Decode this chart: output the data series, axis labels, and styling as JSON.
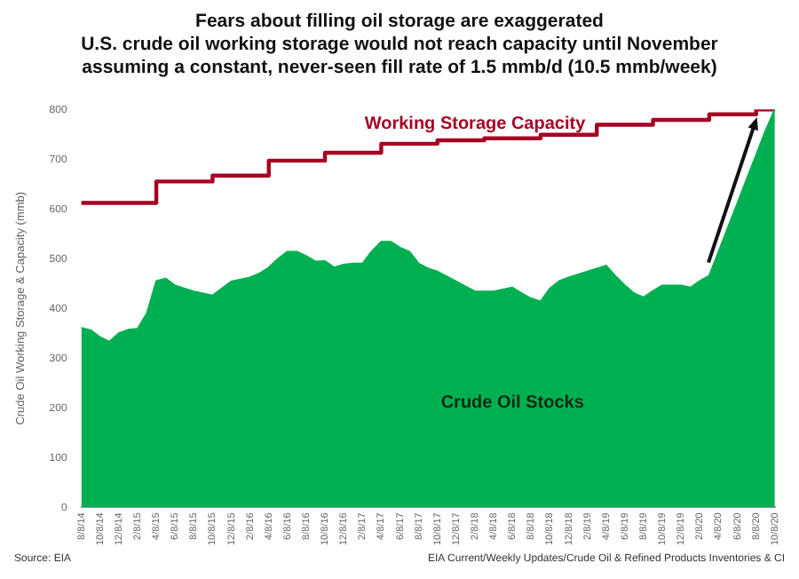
{
  "chart_data": {
    "type": "area",
    "title": "Fears about filling oil storage are exaggerated",
    "subtitle": "U.S. crude oil working storage would not reach capacity until November assuming a constant, never-seen fill rate of 1.5 mmb/d (10.5 mmb/week)",
    "ylabel": "Crude Oil Working Storage & Capacity (mmb)",
    "ylim": [
      0,
      800
    ],
    "yticks": [
      0,
      100,
      200,
      300,
      400,
      500,
      600,
      700,
      800
    ],
    "grid": false,
    "legend": false,
    "marker": "none",
    "categories": [
      "8/8/14",
      null,
      "10/8/14",
      null,
      "12/8/14",
      null,
      "2/8/15",
      null,
      "4/8/15",
      null,
      "6/8/15",
      null,
      "8/8/15",
      null,
      "10/8/15",
      null,
      "12/8/15",
      null,
      "2/8/16",
      null,
      "4/8/16",
      null,
      "6/8/16",
      null,
      "8/8/16",
      null,
      "10/8/16",
      null,
      "12/8/16",
      null,
      "2/8/17",
      null,
      "4/8/17",
      null,
      "6/8/17",
      null,
      "8/8/17",
      null,
      "10/8/17",
      null,
      "12/8/17",
      null,
      "2/8/18",
      null,
      "4/8/18",
      null,
      "6/8/18",
      null,
      "8/8/18",
      null,
      "10/8/18",
      null,
      "12/8/18",
      null,
      "2/8/19",
      null,
      "4/8/19",
      null,
      "6/8/19",
      null,
      "8/8/19",
      null,
      "10/8/19",
      null,
      "12/8/19",
      null,
      "2/8/20",
      null,
      "4/8/20",
      null,
      "6/8/20",
      null,
      "8/8/20",
      null,
      "10/8/20"
    ],
    "series": [
      {
        "name": "Crude Oil Stocks",
        "color": "#00b050",
        "values": [
          361,
          356,
          342,
          333,
          350,
          357,
          359,
          390,
          455,
          460,
          446,
          440,
          434,
          430,
          426,
          440,
          454,
          458,
          462,
          470,
          482,
          500,
          514,
          514,
          505,
          494,
          495,
          482,
          488,
          490,
          490,
          515,
          534,
          534,
          522,
          514,
          490,
          480,
          474,
          464,
          454,
          444,
          434,
          434,
          434,
          438,
          442,
          430,
          420,
          414,
          440,
          455,
          462,
          468,
          474,
          480,
          486,
          465,
          446,
          430,
          422,
          435,
          446,
          446,
          446,
          442,
          455,
          466,
          514,
          563,
          611,
          660,
          708,
          757,
          800
        ]
      },
      {
        "name": "Working Storage Capacity",
        "type": "step",
        "color": "#a50021",
        "values": [
          612,
          612,
          612,
          612,
          612,
          612,
          612,
          612,
          655,
          655,
          655,
          655,
          655,
          655,
          667,
          667,
          667,
          667,
          667,
          667,
          697,
          697,
          697,
          697,
          697,
          697,
          713,
          713,
          713,
          713,
          713,
          713,
          731,
          731,
          731,
          731,
          731,
          731,
          738,
          738,
          738,
          738,
          738,
          742,
          742,
          742,
          742,
          742,
          742,
          749,
          749,
          749,
          749,
          749,
          749,
          769,
          769,
          769,
          769,
          769,
          769,
          779,
          779,
          779,
          779,
          779,
          779,
          790,
          790,
          790,
          790,
          790,
          800,
          800,
          800
        ]
      }
    ],
    "annotations": [
      "Source: EIA",
      "EIA Current/Weekly Updates/Crude Oil & Refined Products Inventories & CI"
    ]
  }
}
